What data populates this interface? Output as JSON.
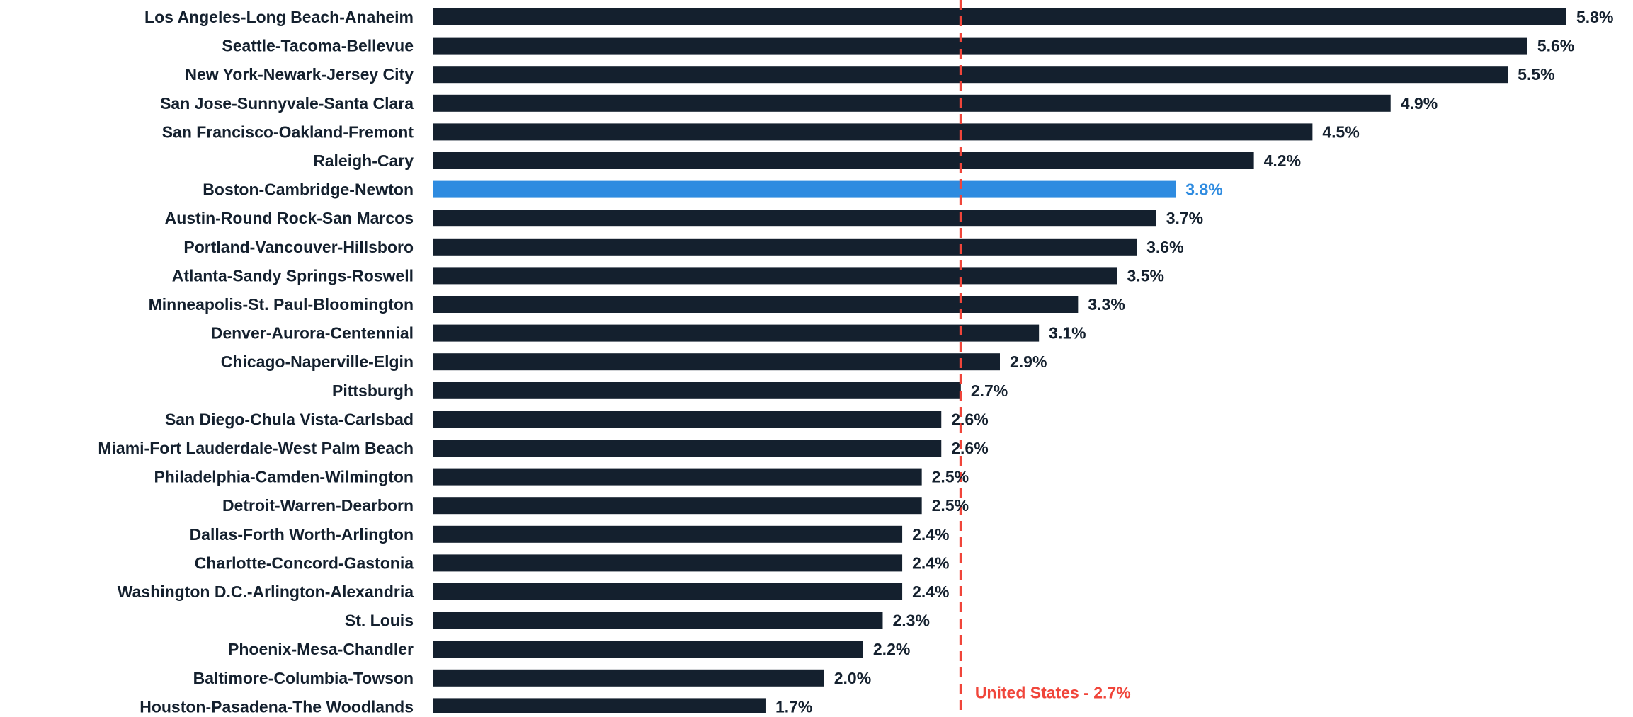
{
  "chart_data": {
    "type": "bar",
    "orientation": "horizontal",
    "categories": [
      "Los Angeles-Long Beach-Anaheim",
      "Seattle-Tacoma-Bellevue",
      "New York-Newark-Jersey City",
      "San Jose-Sunnyvale-Santa Clara",
      "San Francisco-Oakland-Fremont",
      "Raleigh-Cary",
      "Boston-Cambridge-Newton",
      "Austin-Round Rock-San Marcos",
      "Portland-Vancouver-Hillsboro",
      "Atlanta-Sandy Springs-Roswell",
      "Minneapolis-St. Paul-Bloomington",
      "Denver-Aurora-Centennial",
      "Chicago-Naperville-Elgin",
      "Pittsburgh",
      "San Diego-Chula Vista-Carlsbad",
      "Miami-Fort Lauderdale-West Palm Beach",
      "Philadelphia-Camden-Wilmington",
      "Detroit-Warren-Dearborn",
      "Dallas-Forth Worth-Arlington",
      "Charlotte-Concord-Gastonia",
      "Washington D.C.-Arlington-Alexandria",
      "St. Louis",
      "Phoenix-Mesa-Chandler",
      "Baltimore-Columbia-Towson",
      "Houston-Pasadena-The Woodlands"
    ],
    "values": [
      5.8,
      5.6,
      5.5,
      4.9,
      4.5,
      4.2,
      3.8,
      3.7,
      3.6,
      3.5,
      3.3,
      3.1,
      2.9,
      2.7,
      2.6,
      2.6,
      2.5,
      2.5,
      2.4,
      2.4,
      2.4,
      2.3,
      2.2,
      2.0,
      1.7
    ],
    "value_labels": [
      "5.8%",
      "5.6%",
      "5.5%",
      "4.9%",
      "4.5%",
      "4.2%",
      "3.8%",
      "3.7%",
      "3.6%",
      "3.5%",
      "3.3%",
      "3.1%",
      "2.9%",
      "2.7%",
      "2.6%",
      "2.6%",
      "2.5%",
      "2.5%",
      "2.4%",
      "2.4%",
      "2.4%",
      "2.3%",
      "2.2%",
      "2.0%",
      "1.7%"
    ],
    "highlight_category": "Boston-Cambridge-Newton",
    "reference_line": {
      "label": "United States - 2.7%",
      "value": 2.7
    },
    "xlim": [
      0,
      5.8
    ],
    "grid": false,
    "colors": {
      "bar": "#14202e",
      "highlight": "#2e8be0",
      "reference": "#f0453a",
      "label_text": "#14202e"
    }
  }
}
